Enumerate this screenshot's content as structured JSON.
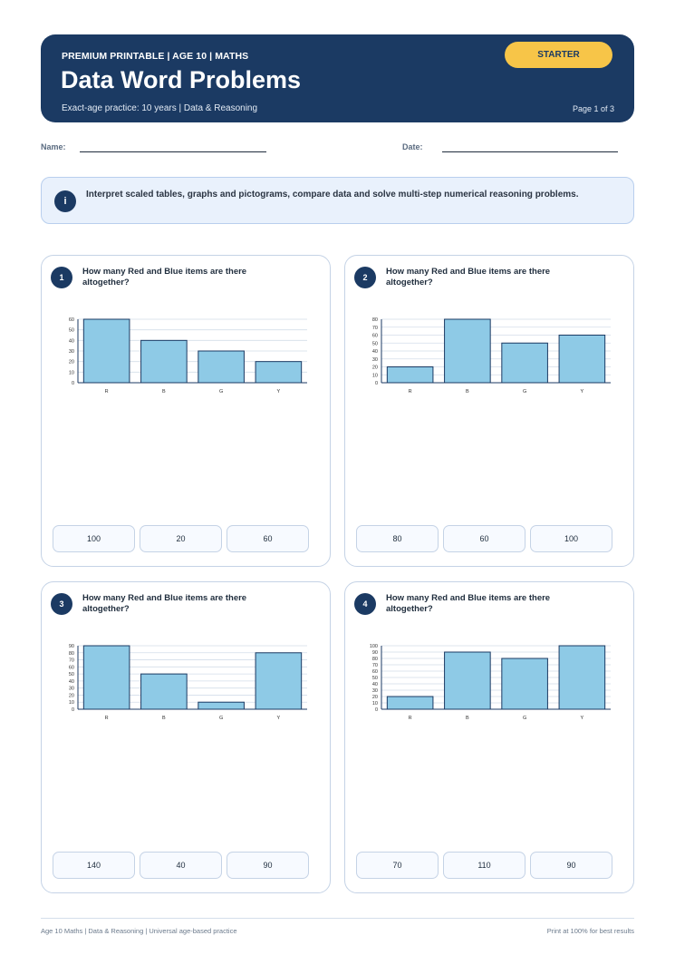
{
  "header": {
    "eyebrow": "PREMIUM PRINTABLE | AGE 10 | MATHS",
    "title": "Data Word Problems",
    "subtitle": "Exact-age practice: 10 years | Data & Reasoning",
    "badge": "STARTER",
    "page": "Page 1 of 3"
  },
  "fields": {
    "name_label": "Name:",
    "date_label": "Date:"
  },
  "info": {
    "icon": "i",
    "text": "Interpret scaled tables, graphs and pictograms, compare data and solve multi-step numerical reasoning problems."
  },
  "colors": {
    "header_bg": "#1b3a63",
    "badge": "#f7c548",
    "bar_fill": "#8ecae6",
    "bar_stroke": "#1b3a63"
  },
  "questions": [
    {
      "number": "1",
      "text": "How many Red and Blue items are there altogether?",
      "choices": [
        "100",
        "20",
        "60"
      ]
    },
    {
      "number": "2",
      "text": "How many Red and Blue items are there altogether?",
      "choices": [
        "80",
        "60",
        "100"
      ]
    },
    {
      "number": "3",
      "text": "How many Red and Blue items are there altogether?",
      "choices": [
        "140",
        "40",
        "90"
      ]
    },
    {
      "number": "4",
      "text": "How many Red and Blue items are there altogether?",
      "choices": [
        "70",
        "110",
        "90"
      ]
    }
  ],
  "chart_data": [
    {
      "type": "bar",
      "categories": [
        "R",
        "B",
        "G",
        "Y"
      ],
      "values": [
        60,
        40,
        30,
        20
      ],
      "ylim": [
        0,
        60
      ],
      "yticks": [
        0,
        10,
        20,
        30,
        40,
        50,
        60
      ],
      "grid": true
    },
    {
      "type": "bar",
      "categories": [
        "R",
        "B",
        "G",
        "Y"
      ],
      "values": [
        20,
        80,
        50,
        60
      ],
      "ylim": [
        0,
        80
      ],
      "yticks": [
        0,
        10,
        20,
        30,
        40,
        50,
        60,
        70,
        80
      ],
      "grid": true
    },
    {
      "type": "bar",
      "categories": [
        "R",
        "B",
        "G",
        "Y"
      ],
      "values": [
        90,
        50,
        10,
        80
      ],
      "ylim": [
        0,
        90
      ],
      "yticks": [
        0,
        10,
        20,
        30,
        40,
        50,
        60,
        70,
        80,
        90
      ],
      "grid": true
    },
    {
      "type": "bar",
      "categories": [
        "R",
        "B",
        "G",
        "Y"
      ],
      "values": [
        20,
        90,
        80,
        100
      ],
      "ylim": [
        0,
        100
      ],
      "yticks": [
        0,
        10,
        20,
        30,
        40,
        50,
        60,
        70,
        80,
        90,
        100
      ],
      "grid": true
    }
  ],
  "footer": {
    "left": "Age 10 Maths | Data & Reasoning | Universal age-based practice",
    "right": "Print at 100% for best results"
  }
}
